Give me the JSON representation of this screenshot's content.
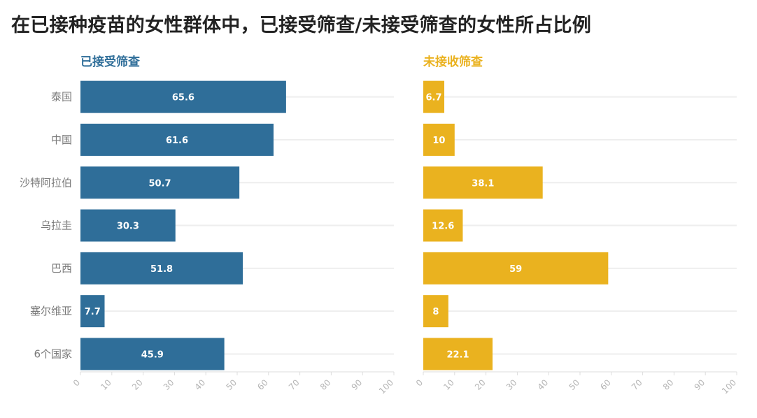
{
  "title": "在已接种疫苗的女性群体中，已接受筛查/未接受筛查的女性所占比例",
  "colors": {
    "left": "#2f6e99",
    "right": "#eab21f",
    "grid": "#eeeeee",
    "axis": "#dddddd"
  },
  "chart_data": [
    {
      "type": "bar",
      "orientation": "horizontal",
      "title": "已接受筛查",
      "categories": [
        "泰国",
        "中国",
        "沙特阿拉伯",
        "乌拉圭",
        "巴西",
        "塞尔维亚",
        "6个国家"
      ],
      "values": [
        65.6,
        61.6,
        50.7,
        30.3,
        51.8,
        7.7,
        45.9
      ],
      "xlim": [
        0,
        100
      ],
      "ticks": [
        0,
        10,
        20,
        30,
        40,
        50,
        60,
        70,
        80,
        90,
        100
      ],
      "color": "#2f6e99"
    },
    {
      "type": "bar",
      "orientation": "horizontal",
      "title": "未接收筛查",
      "categories": [
        "泰国",
        "中国",
        "沙特阿拉伯",
        "乌拉圭",
        "巴西",
        "塞尔维亚",
        "6个国家"
      ],
      "values": [
        6.7,
        10,
        38.1,
        12.6,
        59,
        8,
        22.1
      ],
      "xlim": [
        0,
        100
      ],
      "ticks": [
        0,
        10,
        20,
        30,
        40,
        50,
        60,
        70,
        80,
        90,
        100
      ],
      "color": "#eab21f"
    }
  ]
}
